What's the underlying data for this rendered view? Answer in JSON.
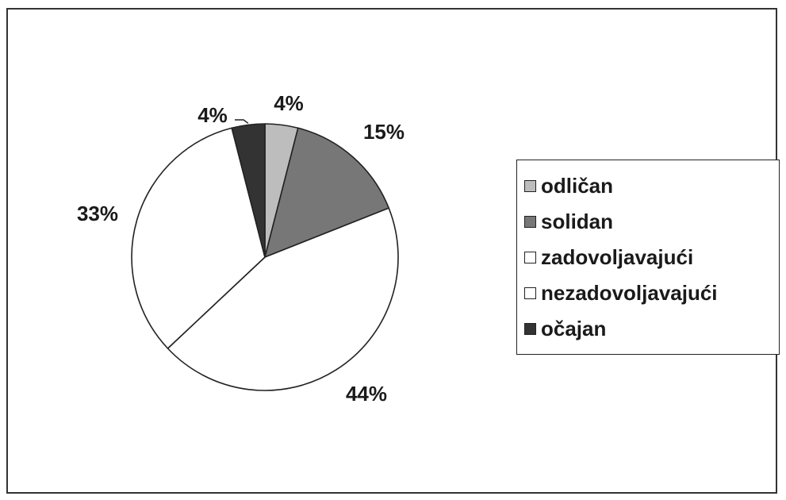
{
  "chart_data": {
    "type": "pie",
    "title": "",
    "legend_position": "right",
    "slices": [
      {
        "label": "odličan",
        "value": 4,
        "value_label": "4%",
        "color": "#bdbdbd"
      },
      {
        "label": "solidan",
        "value": 15,
        "value_label": "15%",
        "color": "#777777"
      },
      {
        "label": "zadovoljavajući",
        "value": 44,
        "value_label": "44%",
        "color": "#ffffff"
      },
      {
        "label": "nezadovoljavajući",
        "value": 33,
        "value_label": "33%",
        "color": "#ffffff"
      },
      {
        "label": "očajan",
        "value": 4,
        "value_label": "4%",
        "color": "#333333"
      }
    ]
  }
}
